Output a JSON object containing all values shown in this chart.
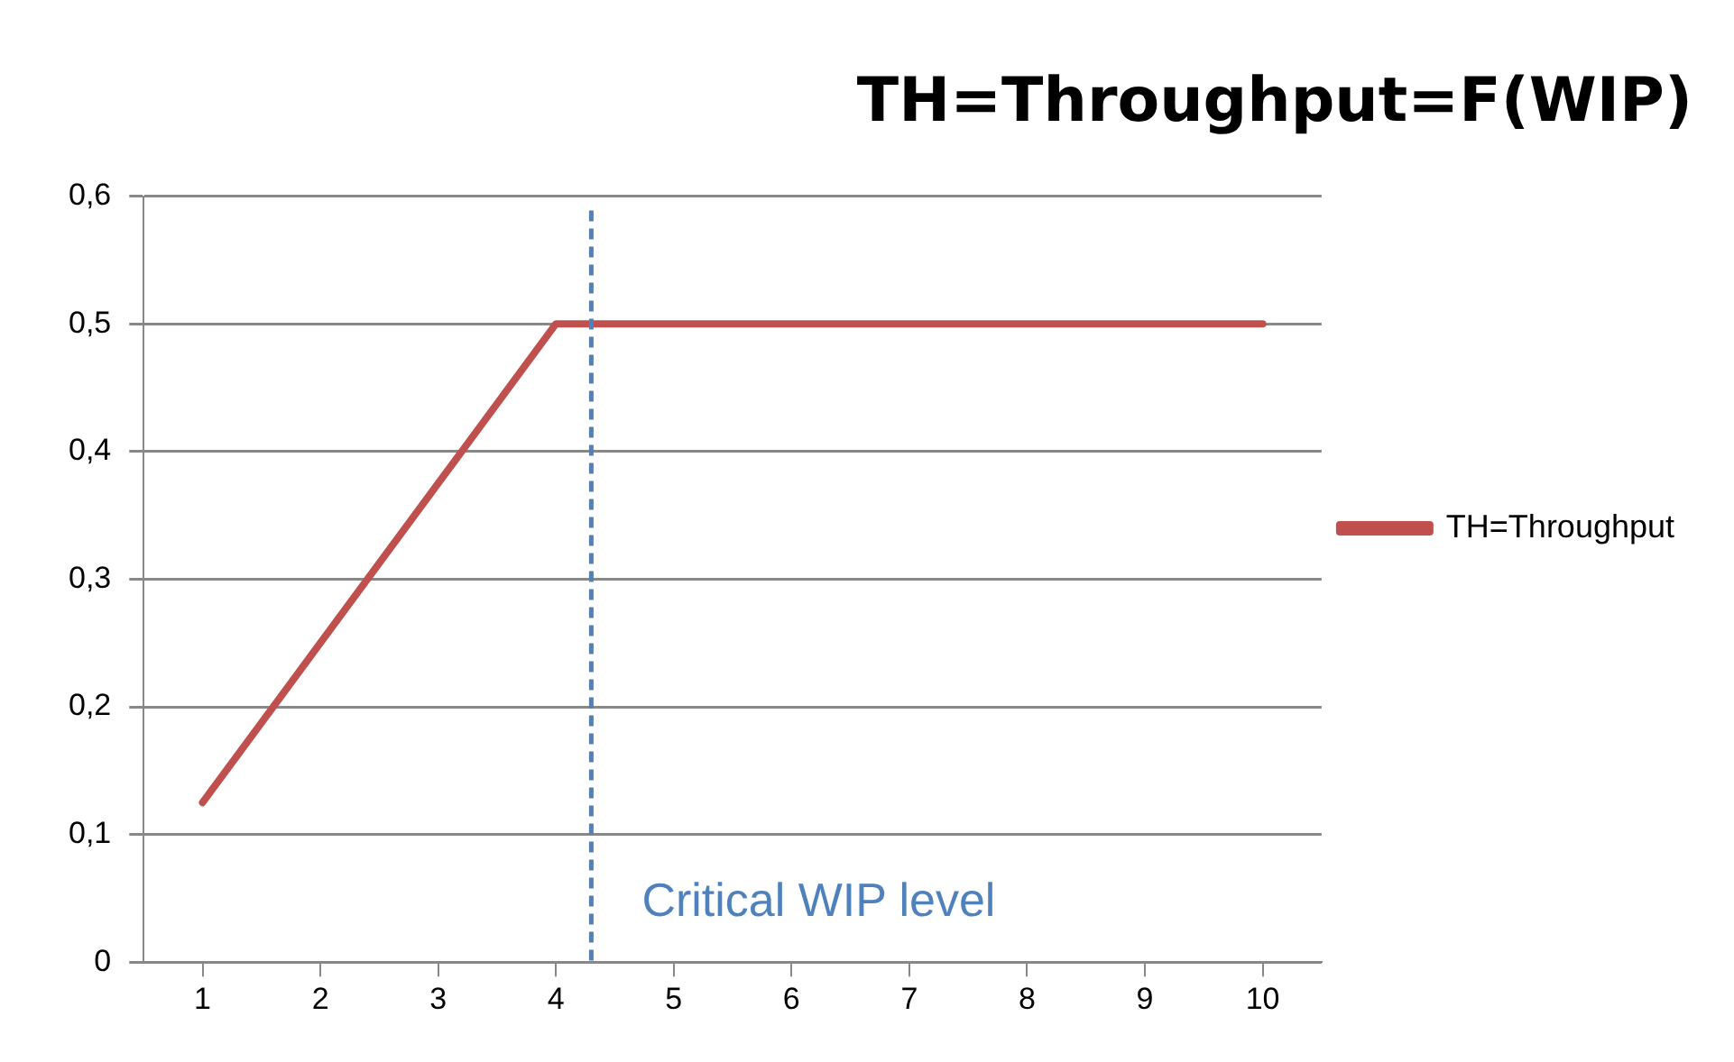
{
  "chart_data": {
    "type": "line",
    "title": "TH=Throughput=F(WIP)",
    "x": [
      1,
      2,
      3,
      4,
      5,
      6,
      7,
      8,
      9,
      10
    ],
    "series": [
      {
        "name": "TH=Throughput",
        "color": "#c0504d",
        "values": [
          0.125,
          0.25,
          0.375,
          0.5,
          0.5,
          0.5,
          0.5,
          0.5,
          0.5,
          0.5
        ]
      }
    ],
    "xlim": [
      0.5,
      10.5
    ],
    "xticks": [
      1,
      2,
      3,
      4,
      5,
      6,
      7,
      8,
      9,
      10
    ],
    "ylim": [
      0,
      0.6
    ],
    "yticks": [
      {
        "value": 0,
        "label": "0"
      },
      {
        "value": 0.1,
        "label": "0,1"
      },
      {
        "value": 0.2,
        "label": "0,2"
      },
      {
        "value": 0.3,
        "label": "0,3"
      },
      {
        "value": 0.4,
        "label": "0,4"
      },
      {
        "value": 0.5,
        "label": "0,5"
      },
      {
        "value": 0.6,
        "label": "0,6"
      }
    ],
    "ref_lines": [
      {
        "axis": "x",
        "value": 4.3,
        "label": "Critical WIP level",
        "color": "#4f81bd",
        "line_style": "dashed"
      }
    ],
    "grid": "y",
    "legend": "right",
    "marker": "none",
    "line_style": "solid"
  }
}
